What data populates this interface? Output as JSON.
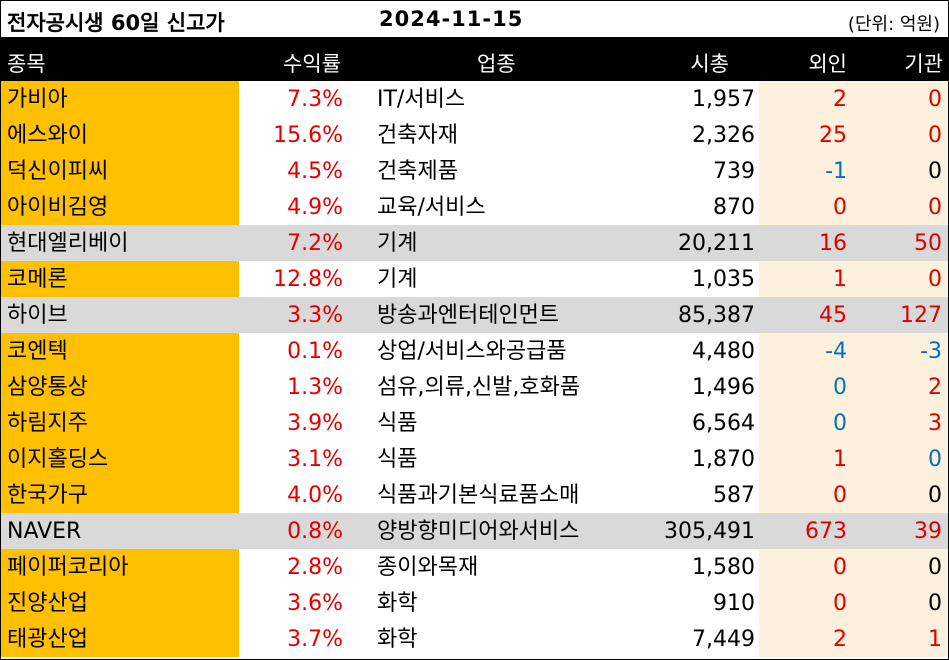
{
  "header": {
    "title": "전자공시생 60일 신고가",
    "date": "2024-11-15",
    "unit": "(단위: 억원)"
  },
  "columns": {
    "name": "종목",
    "return": "수익률",
    "industry": "업종",
    "market_cap": "시총",
    "foreign": "외인",
    "institution": "기관"
  },
  "colors": {
    "name_bg": "#ffc000",
    "highlight_row": "#d9d9d9",
    "flow_bg": "#fdf0dc",
    "positive": "#e00000",
    "negative": "#0070c0"
  },
  "rows": [
    {
      "name": "가비아",
      "return": "7.3%",
      "industry": "IT/서비스",
      "market_cap": "1,957",
      "foreign": "2",
      "institution": "0",
      "hl": false,
      "fc": "pos",
      "ic": "zero-red"
    },
    {
      "name": "에스와이",
      "return": "15.6%",
      "industry": "건축자재",
      "market_cap": "2,326",
      "foreign": "25",
      "institution": "0",
      "hl": false,
      "fc": "pos",
      "ic": "zero-red"
    },
    {
      "name": "덕신이피씨",
      "return": "4.5%",
      "industry": "건축제품",
      "market_cap": "739",
      "foreign": "-1",
      "institution": "0",
      "hl": false,
      "fc": "neg",
      "ic": "zero-black"
    },
    {
      "name": "아이비김영",
      "return": "4.9%",
      "industry": "교육/서비스",
      "market_cap": "870",
      "foreign": "0",
      "institution": "0",
      "hl": false,
      "fc": "zero-red",
      "ic": "zero-red"
    },
    {
      "name": "현대엘리베이",
      "return": "7.2%",
      "industry": "기계",
      "market_cap": "20,211",
      "foreign": "16",
      "institution": "50",
      "hl": true,
      "fc": "pos",
      "ic": "pos"
    },
    {
      "name": "코메론",
      "return": "12.8%",
      "industry": "기계",
      "market_cap": "1,035",
      "foreign": "1",
      "institution": "0",
      "hl": false,
      "fc": "pos",
      "ic": "zero-red"
    },
    {
      "name": "하이브",
      "return": "3.3%",
      "industry": "방송과엔터테인먼트",
      "market_cap": "85,387",
      "foreign": "45",
      "institution": "127",
      "hl": true,
      "fc": "pos",
      "ic": "pos"
    },
    {
      "name": "코엔텍",
      "return": "0.1%",
      "industry": "상업/서비스와공급품",
      "market_cap": "4,480",
      "foreign": "-4",
      "institution": "-3",
      "hl": false,
      "fc": "neg",
      "ic": "neg"
    },
    {
      "name": "삼양통상",
      "return": "1.3%",
      "industry": "섬유,의류,신발,호화품",
      "market_cap": "1,496",
      "foreign": "0",
      "institution": "2",
      "hl": false,
      "fc": "zero-blue",
      "ic": "pos"
    },
    {
      "name": "하림지주",
      "return": "3.9%",
      "industry": "식품",
      "market_cap": "6,564",
      "foreign": "0",
      "institution": "3",
      "hl": false,
      "fc": "zero-blue",
      "ic": "pos"
    },
    {
      "name": "이지홀딩스",
      "return": "3.1%",
      "industry": "식품",
      "market_cap": "1,870",
      "foreign": "1",
      "institution": "0",
      "hl": false,
      "fc": "pos",
      "ic": "zero-blue"
    },
    {
      "name": "한국가구",
      "return": "4.0%",
      "industry": "식품과기본식료품소매",
      "market_cap": "587",
      "foreign": "0",
      "institution": "0",
      "hl": false,
      "fc": "zero-red",
      "ic": "zero-black"
    },
    {
      "name": "NAVER",
      "return": "0.8%",
      "industry": "양방향미디어와서비스",
      "market_cap": "305,491",
      "foreign": "673",
      "institution": "39",
      "hl": true,
      "fc": "pos",
      "ic": "pos"
    },
    {
      "name": "페이퍼코리아",
      "return": "2.8%",
      "industry": "종이와목재",
      "market_cap": "1,580",
      "foreign": "0",
      "institution": "0",
      "hl": false,
      "fc": "zero-red",
      "ic": "zero-black"
    },
    {
      "name": "진양산업",
      "return": "3.6%",
      "industry": "화학",
      "market_cap": "910",
      "foreign": "0",
      "institution": "0",
      "hl": false,
      "fc": "zero-red",
      "ic": "zero-black"
    },
    {
      "name": "태광산업",
      "return": "3.7%",
      "industry": "화학",
      "market_cap": "7,449",
      "foreign": "2",
      "institution": "1",
      "hl": false,
      "fc": "pos",
      "ic": "pos"
    }
  ]
}
